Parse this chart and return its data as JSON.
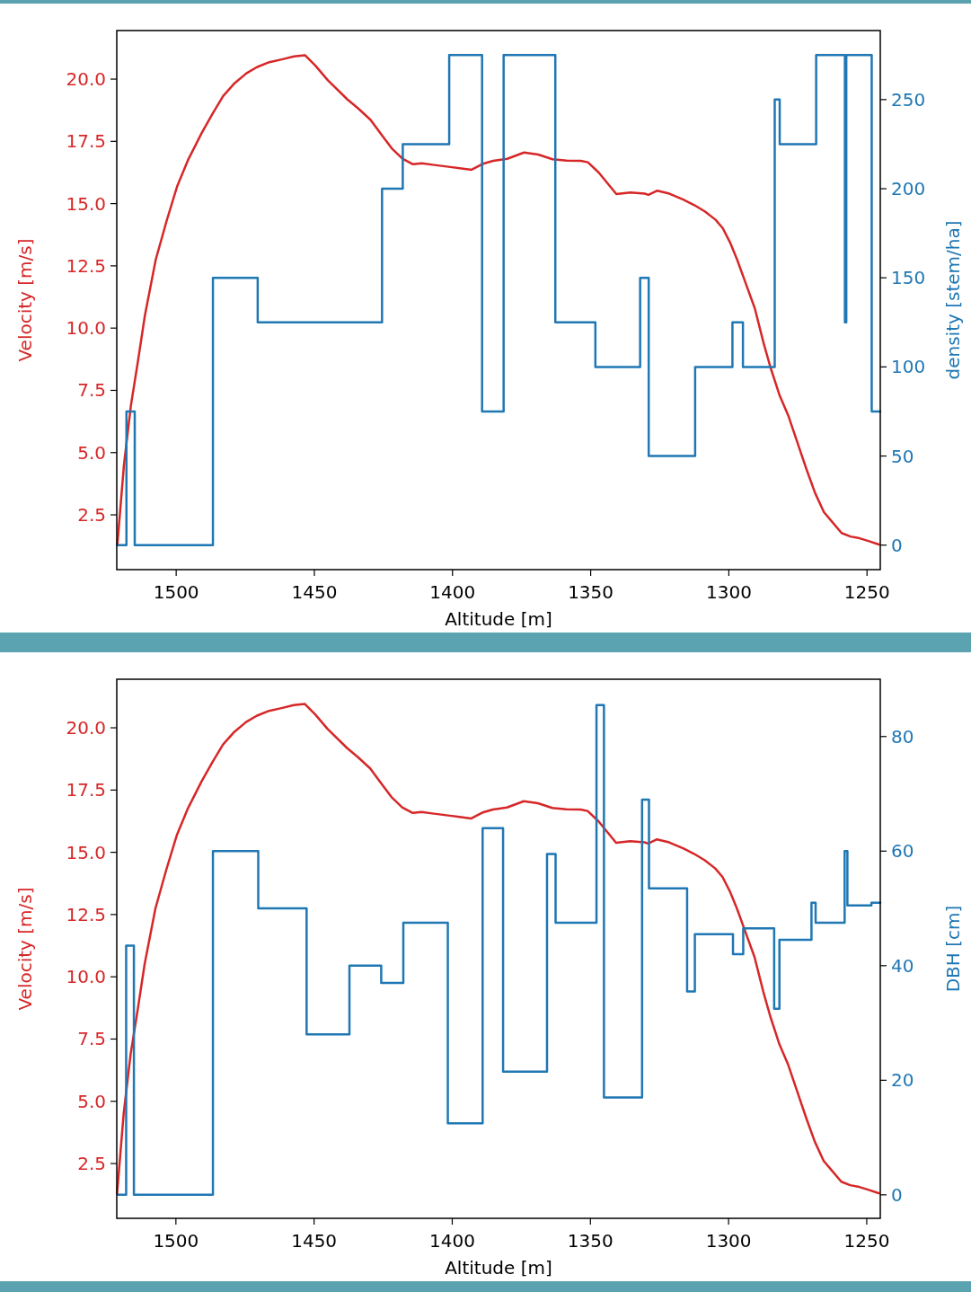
{
  "chart_data": [
    {
      "type": "line",
      "xlabel": "Altitude [m]",
      "ylabel": "Velocity [m/s]",
      "y2label": "density [stem/ha]",
      "xlim": [
        1521.5,
        1245.2
      ],
      "xticks": [
        1500,
        1450,
        1400,
        1350,
        1300,
        1250
      ],
      "ylim": [
        0.3,
        21.95
      ],
      "yticks": [
        {
          "value": 2.5,
          "label": "2.5"
        },
        {
          "value": 5,
          "label": "5.0"
        },
        {
          "value": 7.5,
          "label": "7.5"
        },
        {
          "value": 10,
          "label": "10.0"
        },
        {
          "value": 12.5,
          "label": "12.5"
        },
        {
          "value": 15,
          "label": "15.0"
        },
        {
          "value": 17.5,
          "label": "17.5"
        },
        {
          "value": 20,
          "label": "20.0"
        }
      ],
      "y2lim": [
        -13.75,
        288.75
      ],
      "y2ticks": [
        0,
        50,
        100,
        150,
        200,
        250
      ],
      "series": [
        {
          "color": "#d62728",
          "x": [
            1521.3,
            1518.9,
            1516.4,
            1513.8,
            1511.3,
            1507.4,
            1503.5,
            1499.7,
            1495.8,
            1490.7,
            1486.8,
            1483.0,
            1479.1,
            1474.6,
            1470.8,
            1466.3,
            1461.8,
            1457.3,
            1453.4,
            1449.6,
            1445.1,
            1438.0,
            1434.2,
            1429.7,
            1425.8,
            1422.0,
            1418.1,
            1414.3,
            1411.1,
            1407.2,
            1400.8,
            1393.1,
            1389.2,
            1385.3,
            1380.2,
            1374.1,
            1369.0,
            1363.8,
            1358.7,
            1353.6,
            1351.0,
            1347.1,
            1340.7,
            1335.6,
            1330.4,
            1329.1,
            1325.9,
            1321.5,
            1316.3,
            1312.5,
            1308.6,
            1304.8,
            1302.2,
            1299.6,
            1297.0,
            1293.8,
            1290.6,
            1287.4,
            1284.9,
            1281.6,
            1278.4,
            1275.2,
            1272.0,
            1268.8,
            1265.6,
            1262.4,
            1259.2,
            1256.0,
            1252.7,
            1249.5,
            1245.7
          ],
          "values": [
            1.28,
            4.51,
            6.88,
            8.7,
            10.52,
            12.75,
            14.29,
            15.68,
            16.73,
            17.85,
            18.62,
            19.32,
            19.81,
            20.23,
            20.48,
            20.68,
            20.79,
            20.91,
            20.96,
            20.54,
            19.95,
            19.18,
            18.83,
            18.37,
            17.78,
            17.22,
            16.8,
            16.58,
            16.62,
            16.56,
            16.47,
            16.36,
            16.59,
            16.72,
            16.8,
            17.05,
            16.97,
            16.78,
            16.73,
            16.72,
            16.66,
            16.25,
            15.38,
            15.45,
            15.4,
            15.35,
            15.52,
            15.4,
            15.15,
            14.94,
            14.68,
            14.35,
            14.01,
            13.45,
            12.75,
            11.77,
            10.79,
            9.39,
            8.41,
            7.29,
            6.46,
            5.41,
            4.36,
            3.38,
            2.61,
            2.19,
            1.77,
            1.63,
            1.56,
            1.45,
            1.31
          ]
        },
        {
          "type": "step",
          "axis": "y2",
          "color": "#1f77b4",
          "x": [
            1521.3,
            1518.0,
            1515.0,
            1486.7,
            1470.5,
            1425.5,
            1418.0,
            1401.2,
            1389.3,
            1381.5,
            1362.8,
            1348.3,
            1332.1,
            1329.0,
            1312.2,
            1298.7,
            1294.9,
            1283.4,
            1281.6,
            1268.4,
            1258.0,
            1257.5,
            1248.3,
            1245.2
          ],
          "values": [
            0,
            75,
            0,
            150,
            125,
            200,
            225,
            275,
            75,
            275,
            125,
            100,
            150,
            50,
            100,
            125,
            100,
            250,
            225,
            275,
            125,
            275,
            75,
            75
          ]
        }
      ]
    },
    {
      "type": "line",
      "xlabel": "Altitude [m]",
      "ylabel": "Velocity [m/s]",
      "y2label": "DBH [cm]",
      "xlim": [
        1521.4,
        1245.1
      ],
      "xticks": [
        1500,
        1450,
        1400,
        1350,
        1300,
        1250
      ],
      "ylim": [
        0.3,
        21.95
      ],
      "yticks": [
        {
          "value": 2.5,
          "label": "2.5"
        },
        {
          "value": 5,
          "label": "5.0"
        },
        {
          "value": 7.5,
          "label": "7.5"
        },
        {
          "value": 10,
          "label": "10.0"
        },
        {
          "value": 12.5,
          "label": "12.5"
        },
        {
          "value": 15,
          "label": "15.0"
        },
        {
          "value": 17.5,
          "label": "17.5"
        },
        {
          "value": 20,
          "label": "20.0"
        }
      ],
      "y2lim": [
        -4.1,
        90
      ],
      "y2ticks": [
        0,
        20,
        40,
        60,
        80
      ],
      "series": [
        {
          "color": "#d62728",
          "x": [
            1521.3,
            1518.9,
            1516.4,
            1513.8,
            1511.3,
            1507.4,
            1503.5,
            1499.7,
            1495.8,
            1490.7,
            1486.8,
            1483.0,
            1479.1,
            1474.6,
            1470.8,
            1466.3,
            1461.8,
            1457.3,
            1453.4,
            1449.6,
            1445.1,
            1438.0,
            1434.2,
            1429.7,
            1425.8,
            1422.0,
            1418.1,
            1414.3,
            1411.1,
            1407.2,
            1400.8,
            1393.1,
            1389.2,
            1385.3,
            1380.2,
            1374.1,
            1369.0,
            1363.8,
            1358.7,
            1353.6,
            1351.0,
            1347.1,
            1340.7,
            1335.6,
            1330.4,
            1329.1,
            1325.9,
            1321.5,
            1316.3,
            1312.5,
            1308.6,
            1304.8,
            1302.2,
            1299.6,
            1297.0,
            1293.8,
            1290.6,
            1287.4,
            1284.9,
            1281.6,
            1278.4,
            1275.2,
            1272.0,
            1268.8,
            1265.6,
            1262.4,
            1259.2,
            1256.0,
            1252.7,
            1249.5,
            1245.7
          ],
          "values": [
            1.28,
            4.51,
            6.88,
            8.7,
            10.52,
            12.75,
            14.29,
            15.68,
            16.73,
            17.85,
            18.62,
            19.32,
            19.81,
            20.23,
            20.48,
            20.68,
            20.79,
            20.91,
            20.96,
            20.54,
            19.95,
            19.18,
            18.83,
            18.37,
            17.78,
            17.22,
            16.8,
            16.58,
            16.62,
            16.56,
            16.47,
            16.36,
            16.59,
            16.72,
            16.8,
            17.05,
            16.97,
            16.78,
            16.73,
            16.72,
            16.66,
            16.25,
            15.38,
            15.45,
            15.4,
            15.35,
            15.52,
            15.4,
            15.15,
            14.94,
            14.68,
            14.35,
            14.01,
            13.45,
            12.75,
            11.77,
            10.79,
            9.39,
            8.41,
            7.29,
            6.46,
            5.41,
            4.36,
            3.38,
            2.61,
            2.19,
            1.77,
            1.63,
            1.56,
            1.45,
            1.31
          ]
        },
        {
          "type": "step",
          "axis": "y2",
          "color": "#1f77b4",
          "x": [
            1520.9,
            1518.0,
            1515.2,
            1486.6,
            1470.2,
            1452.7,
            1437.2,
            1425.7,
            1417.7,
            1401.6,
            1389.0,
            1381.6,
            1365.7,
            1362.6,
            1347.8,
            1345.1,
            1331.3,
            1328.8,
            1315.0,
            1312.2,
            1298.4,
            1294.7,
            1283.5,
            1281.6,
            1270.0,
            1268.5,
            1258.0,
            1257.0,
            1248.3,
            1245.1
          ],
          "values": [
            0,
            43.5,
            0,
            60,
            50,
            28,
            40,
            37,
            47.5,
            12.5,
            64,
            21.5,
            59.5,
            47.5,
            85.5,
            17,
            69,
            53.5,
            35.5,
            45.5,
            42,
            46.5,
            32.5,
            44.5,
            51,
            47.5,
            60,
            50.5,
            51,
            51
          ]
        }
      ]
    }
  ]
}
